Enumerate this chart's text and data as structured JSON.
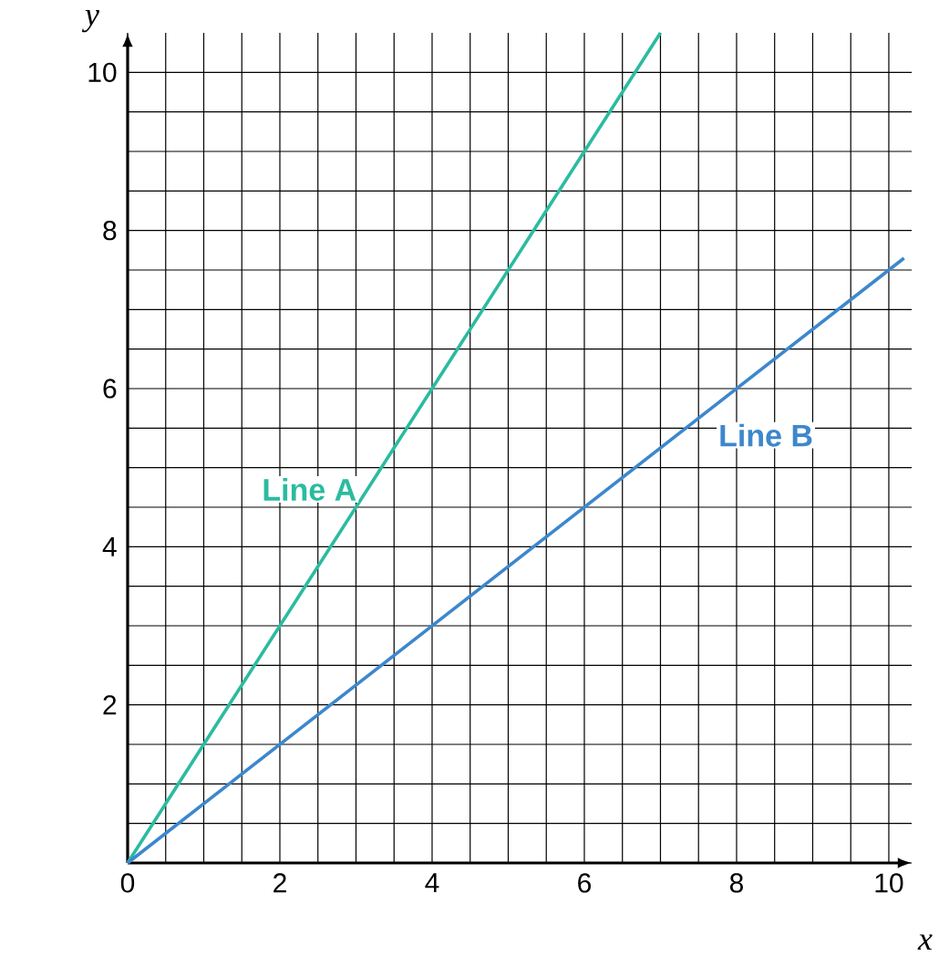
{
  "chart_data": {
    "type": "line",
    "xlabel": "x",
    "ylabel": "y",
    "series": [
      {
        "name": "Line A",
        "color": "#2bbba0",
        "x": [
          0,
          7
        ],
        "values": [
          0,
          10.5
        ]
      },
      {
        "name": "Line B",
        "color": "#3d87cc",
        "x": [
          0,
          10.2
        ],
        "values": [
          0,
          7.65
        ]
      }
    ],
    "xlim": [
      0,
      10.3
    ],
    "ylim": [
      0,
      10.5
    ],
    "xticks": [
      0,
      2,
      4,
      6,
      8,
      10
    ],
    "yticks": [
      {
        "value": 0,
        "label": null
      },
      2,
      4,
      6,
      8,
      10
    ],
    "grid": true,
    "marker": "none",
    "line_style": "solid"
  }
}
